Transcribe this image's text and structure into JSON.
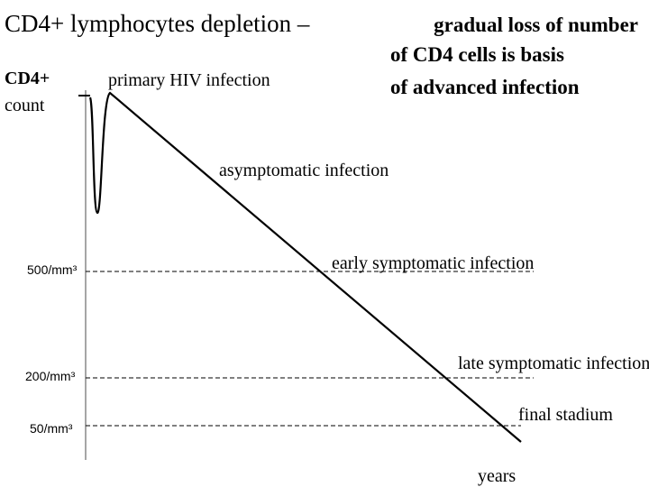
{
  "title": "CD4+ lymphocytes depletion –",
  "subtitle_lines": [
    "gradual loss of number",
    "of CD4 cells is basis",
    "of advanced infection"
  ],
  "y_label_lines": [
    "CD4+",
    "count"
  ],
  "x_label": "years",
  "levels": [
    "500/mm³",
    "200/mm³",
    "50/mm³"
  ],
  "phases": [
    "primary HIV infection",
    "asymptomatic infection",
    "early symptomatic infection",
    "late symptomatic infection",
    "final stadium"
  ]
}
